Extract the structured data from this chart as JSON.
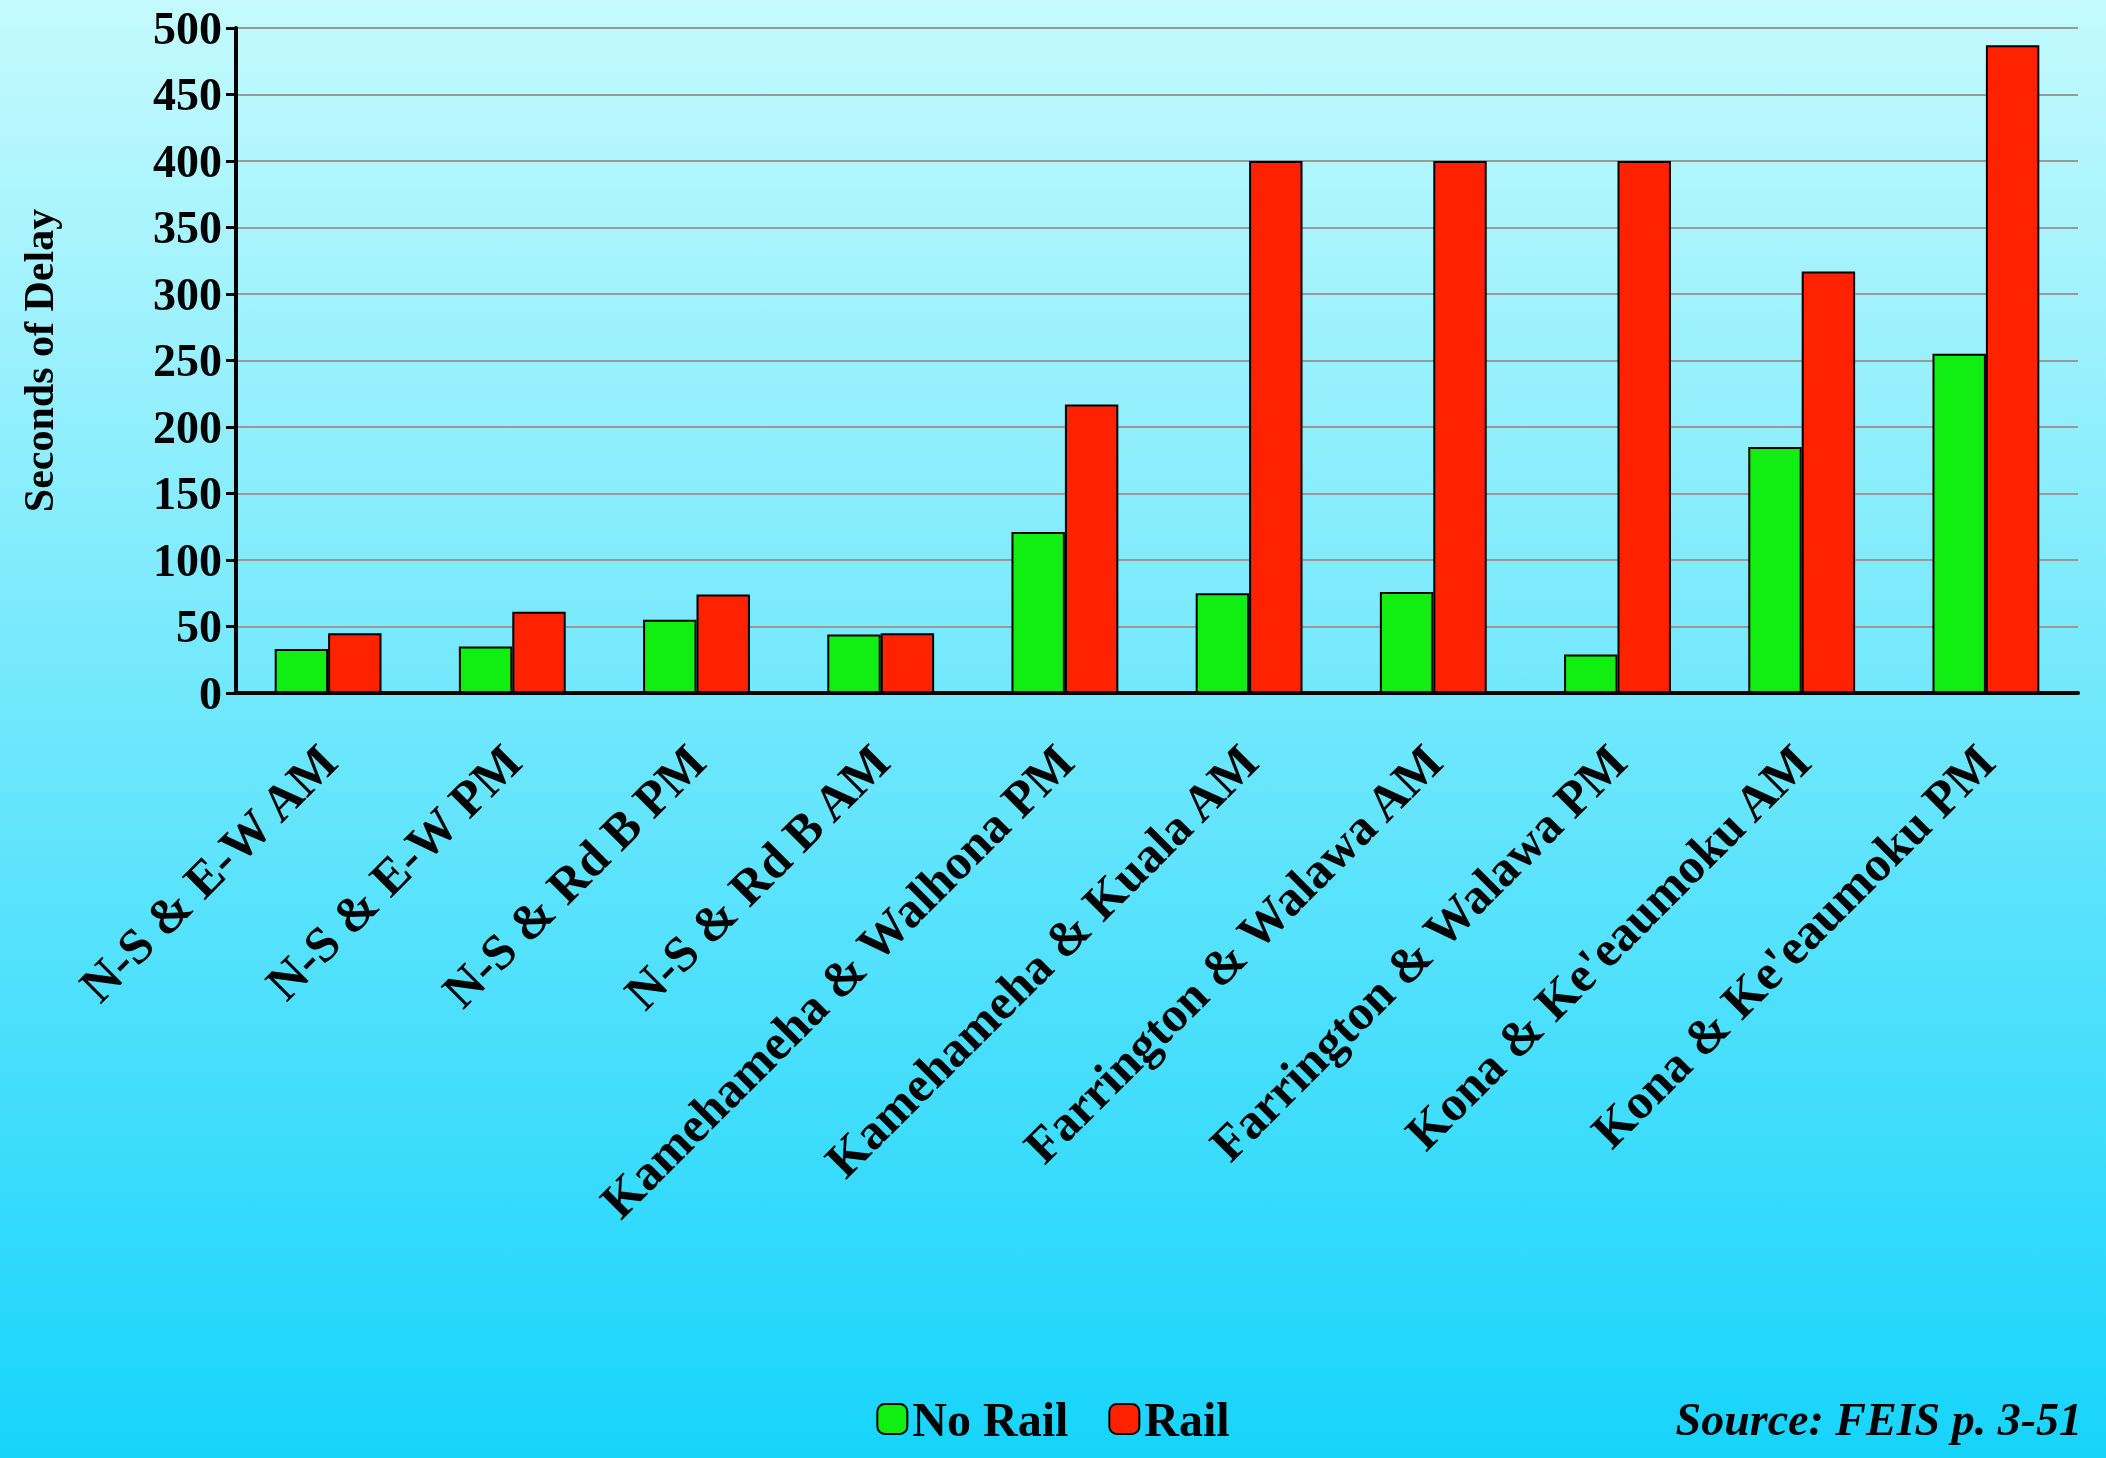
{
  "chart_data": {
    "type": "bar",
    "categories": [
      "N-S & E-W AM",
      "N-S & E-W PM",
      "N-S & Rd B PM",
      "N-S & Rd B AM",
      "Kamehameha & Walhona PM",
      "Kamehameha & Kuala AM",
      "Farrington & Walawa AM",
      "Farrington & Walawa PM",
      "Kona & Ke'eaumoku AM",
      "Kona & Ke'eaumoku PM"
    ],
    "series": [
      {
        "name": "No Rail",
        "color": "#11ee11",
        "values": [
          33,
          35,
          55,
          44,
          121,
          75,
          76,
          29,
          185,
          255
        ]
      },
      {
        "name": "Rail",
        "color": "#ff2200",
        "values": [
          45,
          61,
          74,
          45,
          217,
          400,
          400,
          400,
          317,
          487
        ]
      }
    ],
    "ylabel": "Seconds of Delay",
    "ylim": [
      0,
      500
    ],
    "yticks": [
      0,
      50,
      100,
      150,
      200,
      250,
      300,
      350,
      400,
      450,
      500
    ],
    "grid": "y",
    "legend": "bottom",
    "annotations": [
      "Source: FEIS p. 3-51"
    ]
  }
}
